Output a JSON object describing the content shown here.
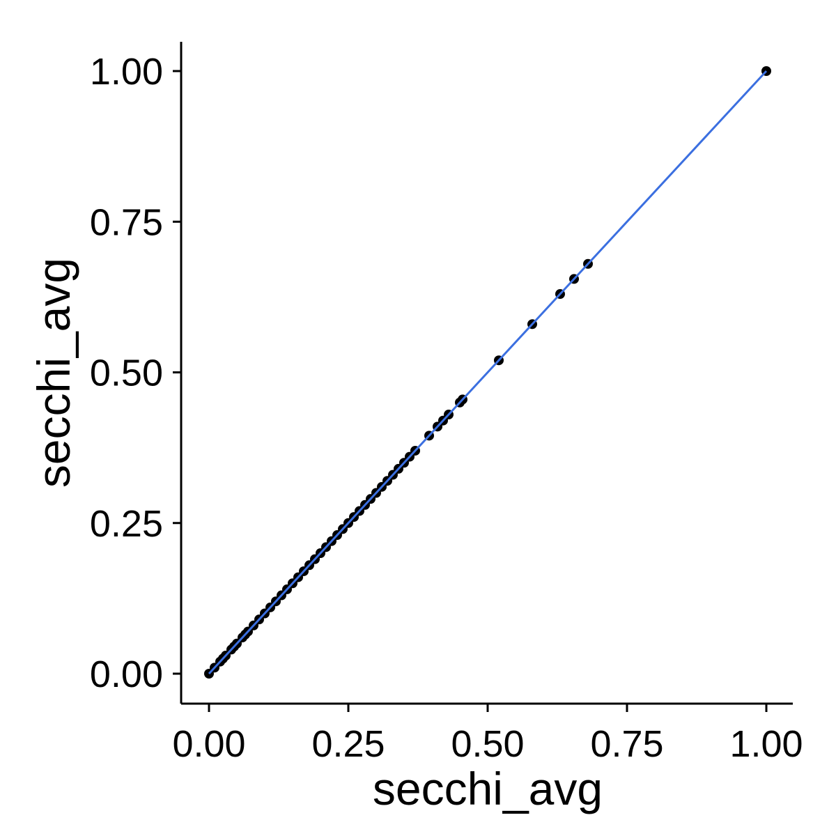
{
  "chart_data": {
    "type": "scatter",
    "title": "",
    "xlabel": "secchi_avg",
    "ylabel": "secchi_avg",
    "xlim": [
      -0.1,
      1.05
    ],
    "ylim": [
      -0.05,
      1.05
    ],
    "x_ticks": [
      "0.00",
      "0.25",
      "0.50",
      "0.75",
      "1.00"
    ],
    "y_ticks": [
      "0.00",
      "0.25",
      "0.50",
      "0.75",
      "1.00"
    ],
    "grid": false,
    "legend": "none",
    "point_color": "#000000",
    "fit_line_color": "#3b6fe0",
    "fit_line": {
      "x": [
        0.0,
        1.0
      ],
      "y": [
        0.0,
        1.0
      ]
    },
    "series": [
      {
        "x": [
          0.0,
          0.01,
          0.02,
          0.025,
          0.03,
          0.04,
          0.045,
          0.05,
          0.06,
          0.065,
          0.07,
          0.08,
          0.09,
          0.1,
          0.11,
          0.12,
          0.13,
          0.14,
          0.15,
          0.16,
          0.17,
          0.18,
          0.19,
          0.2,
          0.21,
          0.22,
          0.23,
          0.24,
          0.25,
          0.26,
          0.27,
          0.28,
          0.29,
          0.3,
          0.31,
          0.32,
          0.33,
          0.34,
          0.35,
          0.36,
          0.37,
          0.395,
          0.41,
          0.42,
          0.43,
          0.45,
          0.455,
          0.52,
          0.58,
          0.63,
          0.655,
          0.68,
          1.0
        ],
        "y": [
          0.0,
          0.01,
          0.02,
          0.025,
          0.03,
          0.04,
          0.045,
          0.05,
          0.06,
          0.065,
          0.07,
          0.08,
          0.09,
          0.1,
          0.11,
          0.12,
          0.13,
          0.14,
          0.15,
          0.16,
          0.17,
          0.18,
          0.19,
          0.2,
          0.21,
          0.22,
          0.23,
          0.24,
          0.25,
          0.26,
          0.27,
          0.28,
          0.29,
          0.3,
          0.31,
          0.32,
          0.33,
          0.34,
          0.35,
          0.36,
          0.37,
          0.395,
          0.41,
          0.42,
          0.43,
          0.45,
          0.455,
          0.52,
          0.58,
          0.63,
          0.655,
          0.68,
          1.0
        ]
      }
    ]
  }
}
